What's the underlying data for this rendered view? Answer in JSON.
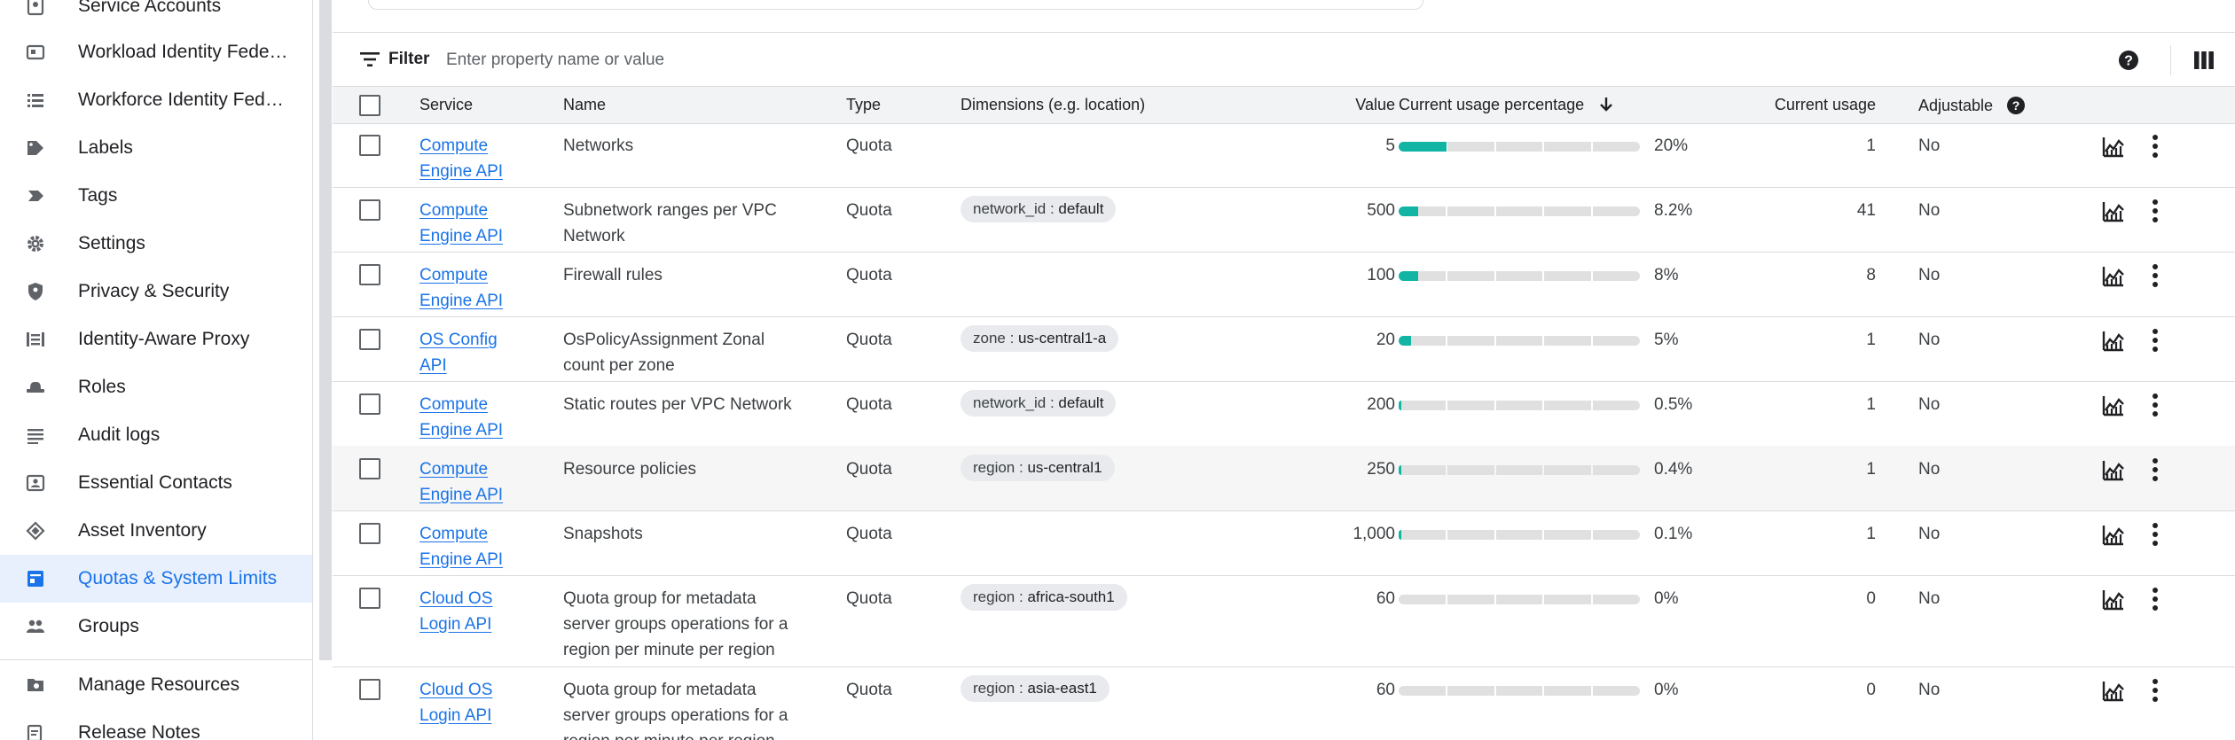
{
  "sidebar": {
    "items": [
      {
        "label": "Service Accounts",
        "icon": "service-accounts-icon"
      },
      {
        "label": "Workload Identity Fede…",
        "icon": "workload-identity-icon"
      },
      {
        "label": "Workforce Identity Fed…",
        "icon": "workforce-identity-icon"
      },
      {
        "label": "Labels",
        "icon": "label-icon"
      },
      {
        "label": "Tags",
        "icon": "tag-icon"
      },
      {
        "label": "Settings",
        "icon": "gear-icon"
      },
      {
        "label": "Privacy & Security",
        "icon": "shield-icon"
      },
      {
        "label": "Identity-Aware Proxy",
        "icon": "proxy-icon"
      },
      {
        "label": "Roles",
        "icon": "roles-hat-icon"
      },
      {
        "label": "Audit logs",
        "icon": "list-icon"
      },
      {
        "label": "Essential Contacts",
        "icon": "contacts-icon"
      },
      {
        "label": "Asset Inventory",
        "icon": "asset-diamond-icon"
      },
      {
        "label": "Quotas & System Limits",
        "icon": "quota-icon",
        "active": true
      },
      {
        "label": "Groups",
        "icon": "groups-icon"
      },
      {
        "label": "Manage Resources",
        "icon": "folder-gear-icon"
      },
      {
        "label": "Release Notes",
        "icon": "notes-icon"
      }
    ]
  },
  "filter": {
    "label": "Filter",
    "placeholder": "Enter property name or value",
    "icon": "filter-lines-icon"
  },
  "toolbar": {
    "help_icon": "help-circle-icon",
    "columns_icon": "column-display-icon"
  },
  "table": {
    "headers": {
      "service": "Service",
      "name": "Name",
      "type": "Type",
      "dimensions": "Dimensions (e.g. location)",
      "value": "Value",
      "usage_pct": "Current usage percentage",
      "usage": "Current usage",
      "adjustable": "Adjustable"
    },
    "sort_icon": "arrow-down-icon",
    "accent_color": "#12b5a4",
    "rows": [
      {
        "service": [
          "Compute",
          "Engine API"
        ],
        "name": [
          "Networks"
        ],
        "type": "Quota",
        "dim_key": "",
        "dim_val": "",
        "value": "5",
        "pct": "20%",
        "pct_num": 20,
        "usage": "1",
        "adjustable": "No"
      },
      {
        "service": [
          "Compute",
          "Engine API"
        ],
        "name": [
          "Subnetwork ranges per VPC",
          "Network"
        ],
        "type": "Quota",
        "dim_key": "network_id",
        "dim_val": "default",
        "value": "500",
        "pct": "8.2%",
        "pct_num": 8.2,
        "usage": "41",
        "adjustable": "No"
      },
      {
        "service": [
          "Compute",
          "Engine API"
        ],
        "name": [
          "Firewall rules"
        ],
        "type": "Quota",
        "dim_key": "",
        "dim_val": "",
        "value": "100",
        "pct": "8%",
        "pct_num": 8,
        "usage": "8",
        "adjustable": "No"
      },
      {
        "service": [
          "OS Config",
          "API"
        ],
        "name": [
          "OsPolicyAssignment Zonal",
          "count per zone"
        ],
        "type": "Quota",
        "dim_key": "zone",
        "dim_val": "us-central1-a",
        "value": "20",
        "pct": "5%",
        "pct_num": 5,
        "usage": "1",
        "adjustable": "No"
      },
      {
        "service": [
          "Compute",
          "Engine API"
        ],
        "name": [
          "Static routes per VPC Network"
        ],
        "type": "Quota",
        "dim_key": "network_id",
        "dim_val": "default",
        "value": "200",
        "pct": "0.5%",
        "pct_num": 0.5,
        "usage": "1",
        "adjustable": "No"
      },
      {
        "service": [
          "Compute",
          "Engine API"
        ],
        "name": [
          "Resource policies"
        ],
        "type": "Quota",
        "dim_key": "region",
        "dim_val": "us-central1",
        "value": "250",
        "pct": "0.4%",
        "pct_num": 0.4,
        "usage": "1",
        "adjustable": "No",
        "hover": true
      },
      {
        "service": [
          "Compute",
          "Engine API"
        ],
        "name": [
          "Snapshots"
        ],
        "type": "Quota",
        "dim_key": "",
        "dim_val": "",
        "value": "1,000",
        "pct": "0.1%",
        "pct_num": 0.1,
        "usage": "1",
        "adjustable": "No"
      },
      {
        "service": [
          "Cloud OS",
          "Login API"
        ],
        "name": [
          "Quota group for metadata",
          "server groups operations for a",
          "region per minute per region"
        ],
        "type": "Quota",
        "dim_key": "region",
        "dim_val": "africa-south1",
        "value": "60",
        "pct": "0%",
        "pct_num": 0,
        "usage": "0",
        "adjustable": "No"
      },
      {
        "service": [
          "Cloud OS",
          "Login API"
        ],
        "name": [
          "Quota group for metadata",
          "server groups operations for a",
          "region per minute per region"
        ],
        "type": "Quota",
        "dim_key": "region",
        "dim_val": "asia-east1",
        "value": "60",
        "pct": "0%",
        "pct_num": 0,
        "usage": "0",
        "adjustable": "No"
      }
    ],
    "row_actions": {
      "chart_icon": "usage-chart-icon",
      "more_icon": "more-vert-icon"
    }
  }
}
